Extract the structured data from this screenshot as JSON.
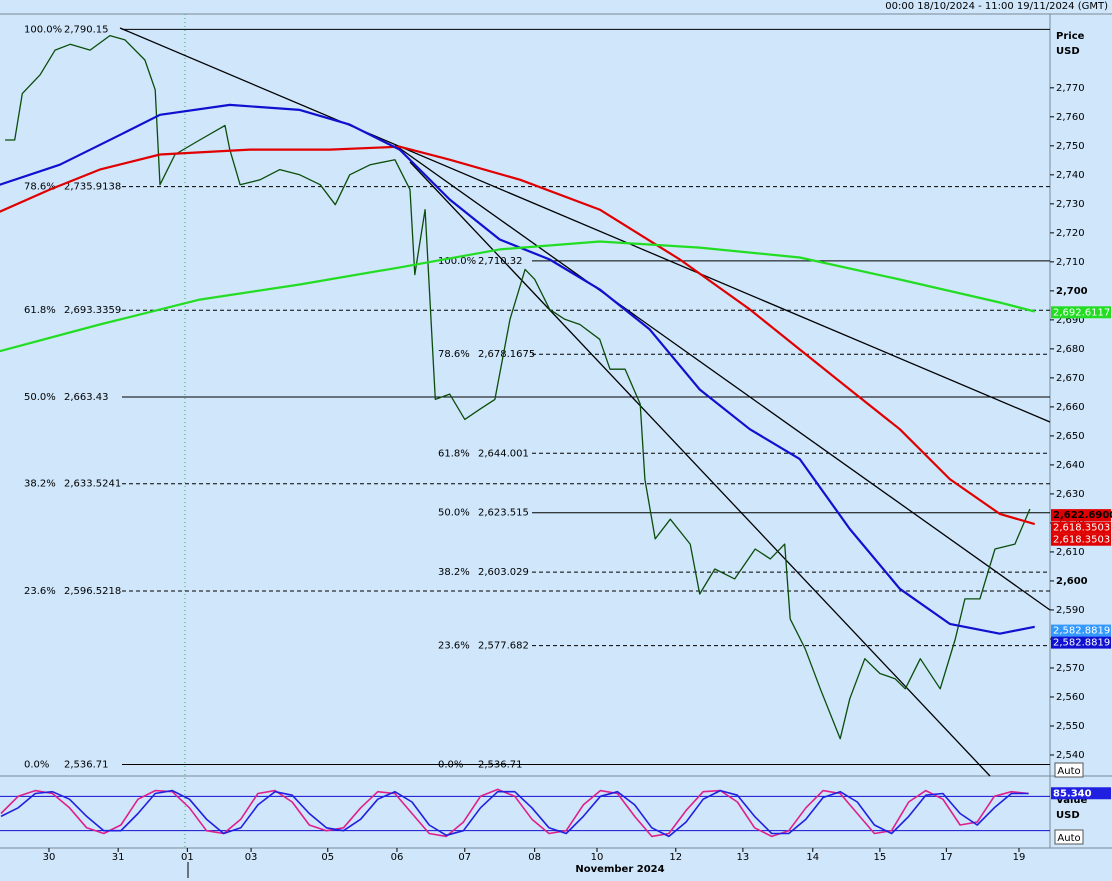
{
  "chart_data": [
    {
      "type": "line",
      "subtitle": "00:00 18/10/2024 - 11:00 19/11/2024 (GMT)",
      "y_label": "Price",
      "y_unit": "USD",
      "x_label": "November 2024",
      "scale_button": "Auto",
      "xlim": [
        -0.715,
        14.613
      ],
      "xticks": [
        {
          "value": 0,
          "label": "30"
        },
        {
          "value": 1.01,
          "label": "31"
        },
        {
          "value": 2.02,
          "label": "01"
        },
        {
          "value": 2.95,
          "label": "03"
        },
        {
          "value": 4.07,
          "label": "05"
        },
        {
          "value": 5.08,
          "label": "06"
        },
        {
          "value": 6.07,
          "label": "07"
        },
        {
          "value": 7.09,
          "label": "08"
        },
        {
          "value": 8.0,
          "label": "10"
        },
        {
          "value": 9.15,
          "label": "12"
        },
        {
          "value": 10.13,
          "label": "13"
        },
        {
          "value": 11.15,
          "label": "14"
        },
        {
          "value": 12.13,
          "label": "15"
        },
        {
          "value": 13.1,
          "label": "17"
        },
        {
          "value": 14.16,
          "label": "19"
        }
      ],
      "ylim": [
        2533.1,
        2795.1
      ],
      "yticks": [
        {
          "value": 2540,
          "label": "2,540"
        },
        {
          "value": 2550,
          "label": "2,550"
        },
        {
          "value": 2560,
          "label": "2,560"
        },
        {
          "value": 2570,
          "label": "2,570"
        },
        {
          "value": 2580,
          "label": "2,580"
        },
        {
          "value": 2590,
          "label": "2,590"
        },
        {
          "value": 2600,
          "label": "2,600"
        },
        {
          "value": 2610,
          "label": "2,610"
        },
        {
          "value": 2620,
          "label": "2,620"
        },
        {
          "value": 2630,
          "label": "2,630"
        },
        {
          "value": 2640,
          "label": "2,640"
        },
        {
          "value": 2650,
          "label": "2,650"
        },
        {
          "value": 2660,
          "label": "2,660"
        },
        {
          "value": 2670,
          "label": "2,670"
        },
        {
          "value": 2680,
          "label": "2,680"
        },
        {
          "value": 2690,
          "label": "2,690"
        },
        {
          "value": 2700,
          "label": "2,700"
        },
        {
          "value": 2710,
          "label": "2,710"
        },
        {
          "value": 2720,
          "label": "2,720"
        },
        {
          "value": 2730,
          "label": "2,730"
        },
        {
          "value": 2740,
          "label": "2,740"
        },
        {
          "value": 2750,
          "label": "2,750"
        },
        {
          "value": 2760,
          "label": "2,760"
        },
        {
          "value": 2770,
          "label": "2,770"
        }
      ],
      "series": [
        {
          "color": "#0b4d0b",
          "width": 1.3,
          "x": [
            -0.64,
            -0.5,
            -0.39,
            -0.13,
            0.09,
            0.31,
            0.6,
            0.89,
            1.11,
            1.4,
            1.55,
            1.62,
            1.84,
            2.2,
            2.57,
            2.64,
            2.79,
            3.08,
            3.37,
            3.66,
            3.96,
            4.18,
            4.39,
            4.69,
            5.05,
            5.27,
            5.34,
            5.49,
            5.64,
            5.85,
            6.07,
            6.29,
            6.51,
            6.73,
            6.95,
            7.09,
            7.31,
            7.53,
            7.75,
            8.04,
            8.19,
            8.41,
            8.63,
            8.7,
            8.85,
            9.07,
            9.36,
            9.5,
            9.72,
            10.01,
            10.31,
            10.53,
            10.74,
            10.82,
            11.04,
            11.26,
            11.55,
            11.69,
            11.91,
            12.13,
            12.35,
            12.5,
            12.72,
            13.01,
            13.23,
            13.37,
            13.59,
            13.81,
            14.1,
            14.32
          ],
          "values": [
            2752,
            2752,
            2768,
            2774.5,
            2783,
            2785,
            2783,
            2788,
            2786.5,
            2779.6,
            2769.3,
            2736.6,
            2747,
            2752,
            2757,
            2748.7,
            2736.6,
            2738.3,
            2741.8,
            2740,
            2736.6,
            2729.7,
            2740,
            2743.5,
            2745.2,
            2734.9,
            2705.6,
            2728,
            2662.6,
            2664.4,
            2655.7,
            2659.2,
            2662.6,
            2690.2,
            2707.4,
            2704,
            2693.6,
            2690.2,
            2688.4,
            2683.3,
            2673,
            2673,
            2661,
            2635,
            2614.5,
            2621.3,
            2612.7,
            2595.5,
            2604.1,
            2600.7,
            2611,
            2607.6,
            2612.7,
            2586.9,
            2576.6,
            2562.8,
            2545.6,
            2559.4,
            2573.2,
            2568.1,
            2566.3,
            2562.8,
            2573.2,
            2562.8,
            2580,
            2593.8,
            2593.8,
            2611,
            2612.7,
            2624.8
          ]
        },
        {
          "color": "#e00000",
          "width": 2.2,
          "x": [
            -0.72,
            0.01,
            0.74,
            1.62,
            2.93,
            4.1,
            5.12,
            5.85,
            6.88,
            8.04,
            9.21,
            10.23,
            10.96,
            11.69,
            12.42,
            13.15,
            13.88,
            14.39
          ],
          "values": [
            2727.3,
            2734.9,
            2741.8,
            2747,
            2748.7,
            2748.7,
            2749.7,
            2745.2,
            2738.3,
            2728,
            2710.8,
            2693.6,
            2679.8,
            2666,
            2652.3,
            2635.1,
            2623.1,
            2619.6
          ]
        },
        {
          "color": "#1010d0",
          "width": 2.2,
          "x": [
            -0.72,
            0.16,
            1.04,
            1.62,
            2.64,
            3.66,
            4.39,
            5.12,
            5.85,
            6.58,
            7.31,
            8.04,
            8.77,
            9.5,
            10.23,
            10.96,
            11.69,
            12.42,
            13.15,
            13.88,
            14.39
          ],
          "values": [
            2736.6,
            2743.5,
            2753.8,
            2760.7,
            2764.1,
            2762.4,
            2757.3,
            2748.7,
            2731.5,
            2717.7,
            2710.8,
            2700.5,
            2686.7,
            2666,
            2652.3,
            2642,
            2617.9,
            2597.3,
            2585.2,
            2581.8,
            2584.2
          ]
        },
        {
          "color": "#22dd22",
          "width": 2.2,
          "x": [
            -0.72,
            0.74,
            2.2,
            3.66,
            5.12,
            6.58,
            8.04,
            9.5,
            10.96,
            12.42,
            13.88,
            14.39
          ],
          "values": [
            2679.2,
            2688.4,
            2697,
            2702.2,
            2708.1,
            2714.3,
            2717,
            2714.9,
            2711.5,
            2703.9,
            2696,
            2692.9
          ]
        }
      ],
      "fib_sets": [
        {
          "levels": [
            {
              "pct": "100.0%",
              "value": 2790.15,
              "label": "2,790.15",
              "dashed": false
            },
            {
              "pct": "78.6%",
              "value": 2735.9138,
              "label": "2,735.9138",
              "dashed": true
            },
            {
              "pct": "61.8%",
              "value": 2693.3359,
              "label": "2,693.3359",
              "dashed": true
            },
            {
              "pct": "50.0%",
              "value": 2663.43,
              "label": "2,663.43",
              "dashed": false
            },
            {
              "pct": "38.2%",
              "value": 2633.5241,
              "label": "2,633.5241",
              "dashed": true
            },
            {
              "pct": "23.6%",
              "value": 2596.5218,
              "label": "2,596.5218",
              "dashed": true
            },
            {
              "pct": "0.0%",
              "value": 2536.71,
              "label": "2,536.71",
              "dashed": false
            }
          ]
        },
        {
          "levels": [
            {
              "pct": "100.0%",
              "value": 2710.32,
              "label": "2,710.32",
              "dashed": false
            },
            {
              "pct": "78.6%",
              "value": 2678.1675,
              "label": "2,678.1675",
              "dashed": true
            },
            {
              "pct": "61.8%",
              "value": 2644.001,
              "label": "2,644.001",
              "dashed": true
            },
            {
              "pct": "50.0%",
              "value": 2623.515,
              "label": "2,623.515",
              "dashed": false
            },
            {
              "pct": "38.2%",
              "value": 2603.029,
              "label": "2,603.029",
              "dashed": true
            },
            {
              "pct": "23.6%",
              "value": 2577.682,
              "label": "2,577.682",
              "dashed": true
            },
            {
              "pct": "0.0%",
              "value": 2536.71,
              "label": "2,536.71",
              "dashed": false
            }
          ]
        }
      ],
      "end_labels": [
        {
          "value": 2622.69,
          "label": "2,622.6900",
          "color": "#e00000"
        },
        {
          "value": 2618.3503,
          "label": "2,618.3503",
          "color": "#e00000"
        },
        {
          "value": 2618.3503,
          "label": "2,618.3503",
          "color": "#e00000"
        },
        {
          "value": 2618.3503,
          "label": "2,618.3503",
          "color": "#e00000"
        },
        {
          "value": 2692.6117,
          "label": "2,692.6117",
          "color": "#22dd22"
        },
        {
          "value": 2582.8819,
          "label": "2,582.8819",
          "color": "#3399ff"
        },
        {
          "value": 2582.8819,
          "label": "2,582.8819",
          "color": "#1010d0"
        }
      ]
    },
    {
      "type": "line",
      "y_label": "Value",
      "y_unit": "USD",
      "scale_button": "Auto",
      "xlim": [
        -0.715,
        14.613
      ],
      "ylim": [
        -5,
        105
      ],
      "levels": [
        80,
        20
      ],
      "series": [
        {
          "color": "#e0208a",
          "width": 1.6,
          "x": [
            -0.7,
            -0.45,
            -0.2,
            0.05,
            0.3,
            0.55,
            0.8,
            1.05,
            1.3,
            1.55,
            1.8,
            2.05,
            2.3,
            2.55,
            2.8,
            3.05,
            3.3,
            3.55,
            3.8,
            4.05,
            4.3,
            4.55,
            4.8,
            5.05,
            5.3,
            5.55,
            5.8,
            6.05,
            6.3,
            6.55,
            6.8,
            7.05,
            7.3,
            7.55,
            7.8,
            8.05,
            8.3,
            8.55,
            8.8,
            9.05,
            9.3,
            9.55,
            9.8,
            10.05,
            10.3,
            10.55,
            10.8,
            11.05,
            11.3,
            11.55,
            11.8,
            12.05,
            12.3,
            12.55,
            12.8,
            13.05,
            13.3,
            13.55,
            13.8,
            14.05,
            14.3
          ],
          "values": [
            50,
            80,
            90,
            85,
            60,
            25,
            15,
            30,
            75,
            90,
            88,
            60,
            20,
            15,
            40,
            85,
            90,
            70,
            30,
            20,
            25,
            60,
            88,
            85,
            50,
            15,
            10,
            35,
            80,
            92,
            80,
            40,
            15,
            20,
            65,
            90,
            85,
            45,
            10,
            15,
            55,
            88,
            90,
            70,
            25,
            10,
            20,
            60,
            90,
            85,
            50,
            15,
            20,
            70,
            90,
            75,
            30,
            35,
            80,
            88,
            85
          ]
        },
        {
          "color": "#2020e0",
          "width": 1.6,
          "x": [
            -0.7,
            -0.45,
            -0.2,
            0.05,
            0.3,
            0.55,
            0.8,
            1.05,
            1.3,
            1.55,
            1.8,
            2.05,
            2.3,
            2.55,
            2.8,
            3.05,
            3.3,
            3.55,
            3.8,
            4.05,
            4.3,
            4.55,
            4.8,
            5.05,
            5.3,
            5.55,
            5.8,
            6.05,
            6.3,
            6.55,
            6.8,
            7.05,
            7.3,
            7.55,
            7.8,
            8.05,
            8.3,
            8.55,
            8.8,
            9.05,
            9.3,
            9.55,
            9.8,
            10.05,
            10.3,
            10.55,
            10.8,
            11.05,
            11.3,
            11.55,
            11.8,
            12.05,
            12.3,
            12.55,
            12.8,
            13.05,
            13.3,
            13.55,
            13.8,
            14.05,
            14.3
          ],
          "values": [
            45,
            60,
            85,
            88,
            75,
            45,
            20,
            20,
            50,
            85,
            90,
            75,
            40,
            15,
            25,
            65,
            88,
            82,
            50,
            25,
            20,
            40,
            75,
            88,
            70,
            30,
            12,
            20,
            60,
            88,
            88,
            60,
            25,
            15,
            45,
            80,
            88,
            65,
            25,
            10,
            35,
            75,
            90,
            82,
            45,
            15,
            15,
            40,
            78,
            88,
            70,
            30,
            15,
            45,
            82,
            85,
            50,
            30,
            60,
            85,
            85
          ]
        }
      ],
      "end_labels": [
        {
          "value": 85.34,
          "label": "85.340",
          "color": "#2020e0"
        }
      ]
    }
  ]
}
